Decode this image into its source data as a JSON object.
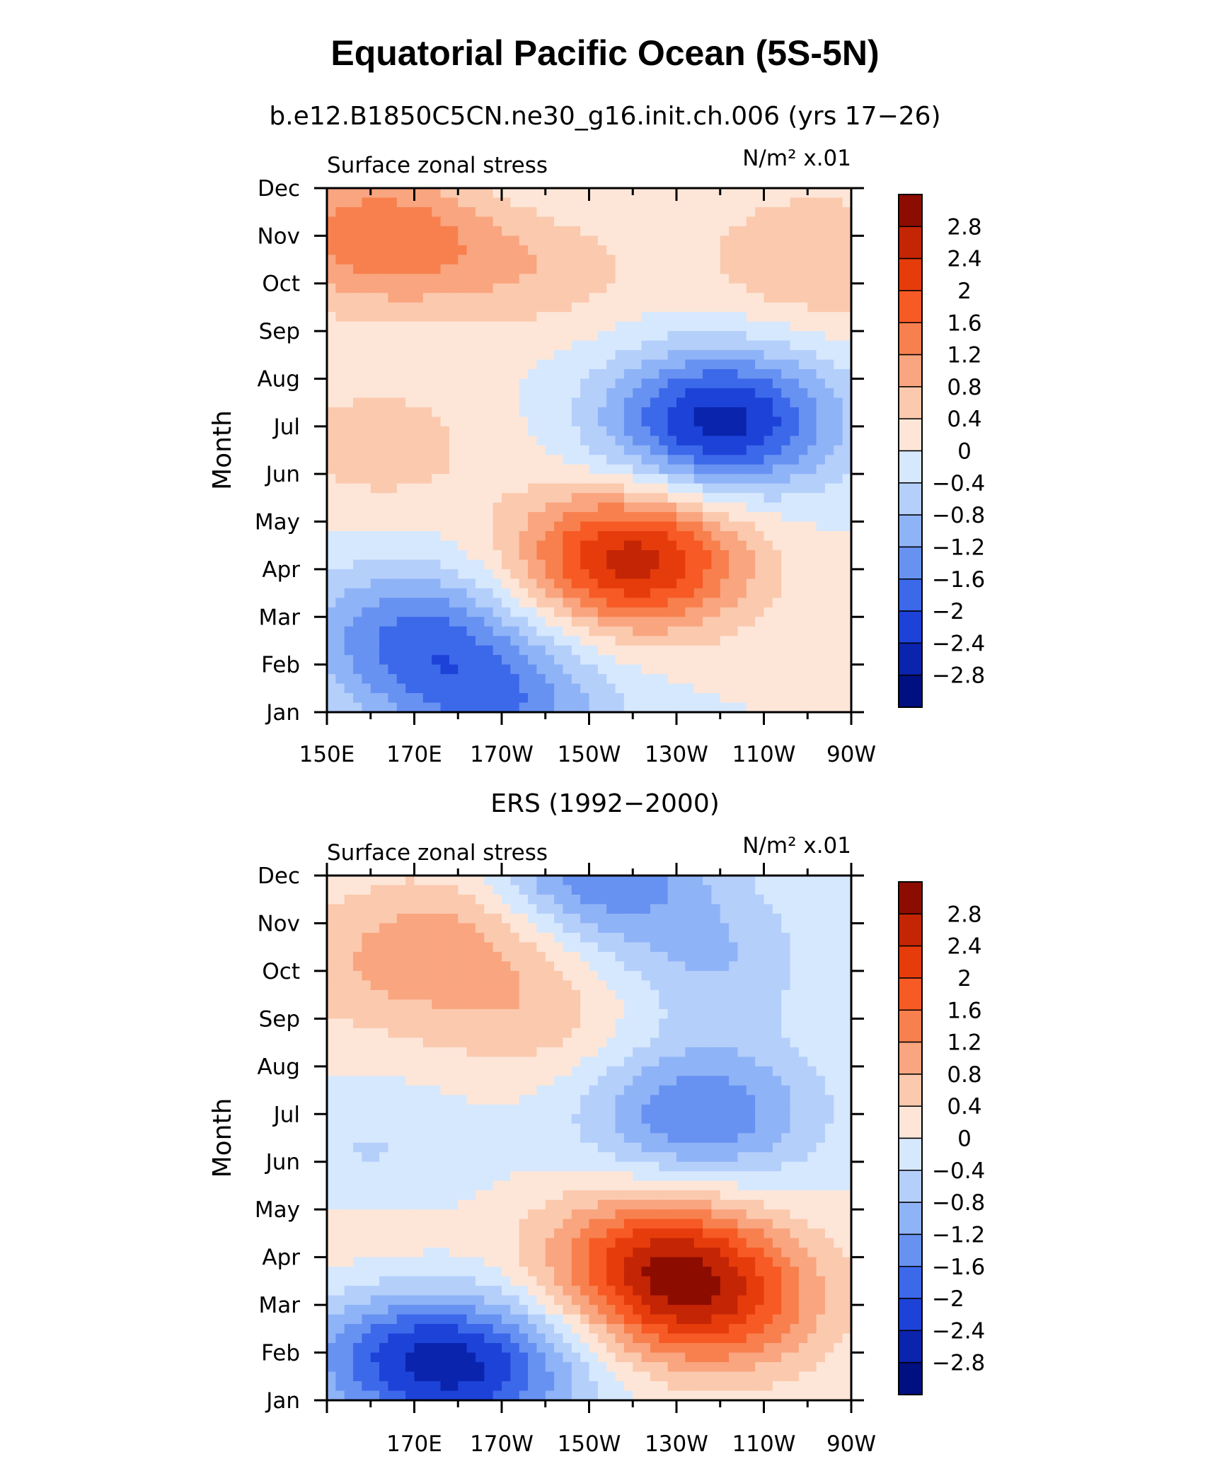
{
  "page_title": "Equatorial Pacific Ocean (5S-5N)",
  "chart_data": [
    {
      "type": "heatmap",
      "title": "b.e12.B1850C5CN.ne30_g16.init.ch.006 (yrs 17−26)",
      "left_label": "Surface zonal stress",
      "right_label": "N/m² x.01",
      "ylabel": "Month",
      "xlabel": "",
      "x_ticks": [
        "150E",
        "170E",
        "170W",
        "150W",
        "130W",
        "110W",
        "90W"
      ],
      "y_ticks": [
        "Jan",
        "Feb",
        "Mar",
        "Apr",
        "May",
        "Jun",
        "Jul",
        "Aug",
        "Sep",
        "Oct",
        "Nov",
        "Dec"
      ],
      "x_range": [
        150,
        270
      ],
      "months": [
        1,
        12
      ],
      "colorbar": {
        "labels": [
          "2.8",
          "2.4",
          "2",
          "1.6",
          "1.2",
          "0.8",
          "0.4",
          "0",
          "−0.4",
          "−0.8",
          "−1.2",
          "−1.6",
          "−2",
          "−2.4",
          "−2.8"
        ]
      },
      "features": [
        {
          "type": "max",
          "lon": 220,
          "month": 4.2,
          "value": 2.6
        },
        {
          "type": "min",
          "lon": 240,
          "month": 7.1,
          "value": -2.6
        },
        {
          "type": "min",
          "lon": 170,
          "month": 2.6,
          "value": -1.6
        },
        {
          "type": "min",
          "lon": 190,
          "month": 1.1,
          "value": -1.4
        },
        {
          "type": "max",
          "lon": 162,
          "month": 11.0,
          "value": 1.5
        },
        {
          "type": "max",
          "lon": 198,
          "month": 10.5,
          "value": 0.7
        },
        {
          "type": "max",
          "lon": 262,
          "month": 10.5,
          "value": 0.8
        },
        {
          "type": "max",
          "lon": 162,
          "month": 6.6,
          "value": 0.6
        },
        {
          "type": "min",
          "lon": 200,
          "month": 12.0,
          "value": -0.3
        }
      ]
    },
    {
      "type": "heatmap",
      "title": "ERS (1992−2000)",
      "left_label": "Surface zonal stress",
      "right_label": "N/m² x.01",
      "ylabel": "Month",
      "xlabel": "",
      "x_ticks": [
        "",
        "170E",
        "170W",
        "150W",
        "130W",
        "110W",
        "90W"
      ],
      "y_ticks": [
        "Jan",
        "Feb",
        "Mar",
        "Apr",
        "May",
        "Jun",
        "Jul",
        "Aug",
        "Sep",
        "Oct",
        "Nov",
        "Dec"
      ],
      "x_range": [
        150,
        270
      ],
      "months": [
        1,
        12
      ],
      "colorbar": {
        "labels": [
          "2.8",
          "2.4",
          "2",
          "1.6",
          "1.2",
          "0.8",
          "0.4",
          "0",
          "−0.4",
          "−0.8",
          "−1.2",
          "−1.6",
          "−2",
          "−2.4",
          "−2.8"
        ]
      },
      "features": [
        {
          "type": "max",
          "lon": 225,
          "month": 4.0,
          "value": 1.9
        },
        {
          "type": "max",
          "lon": 238,
          "month": 3.0,
          "value": 1.8
        },
        {
          "type": "min",
          "lon": 235,
          "month": 7.0,
          "value": -1.6
        },
        {
          "type": "min",
          "lon": 210,
          "month": 12.0,
          "value": -1.7
        },
        {
          "type": "min",
          "lon": 185,
          "month": 1.6,
          "value": -1.7
        },
        {
          "type": "min",
          "lon": 166,
          "month": 2.0,
          "value": -1.4
        },
        {
          "type": "max",
          "lon": 185,
          "month": 11.0,
          "value": 0.9
        },
        {
          "type": "max",
          "lon": 160,
          "month": 10.0,
          "value": 0.6
        },
        {
          "type": "max",
          "lon": 198,
          "month": 9.0,
          "value": 0.6
        },
        {
          "type": "min",
          "lon": 242,
          "month": 10.2,
          "value": -0.9
        },
        {
          "type": "max",
          "lon": 262,
          "month": 10.2,
          "value": 0.3
        },
        {
          "type": "max",
          "lon": 160,
          "month": 4.3,
          "value": 0.4
        },
        {
          "type": "min",
          "lon": 160,
          "month": 6.0,
          "value": -0.5
        }
      ]
    }
  ],
  "colors": {
    "pos": [
      "#fde6d8",
      "#fbc9ae",
      "#f9a57f",
      "#f7804e",
      "#f75a24",
      "#e63c0c",
      "#c42505",
      "#8c0c00"
    ],
    "neg": [
      "#d6e8fd",
      "#b5cffb",
      "#8fb3f7",
      "#6792f1",
      "#3c68ea",
      "#1c42d8",
      "#0a24ad",
      "#001080"
    ]
  }
}
